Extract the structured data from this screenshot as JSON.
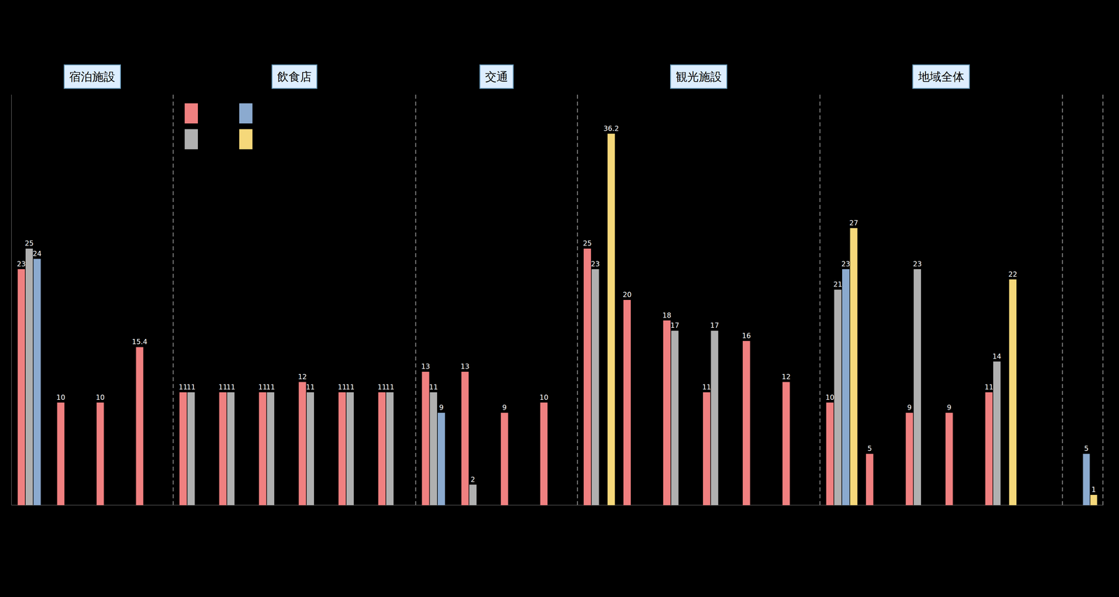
{
  "chart_data": [
    {
      "type": "bar",
      "title": "宿泊施設",
      "categories": [
        null,
        null,
        null,
        null
      ],
      "series": [
        {
          "color": "#F08080",
          "values": [
            23,
            10,
            10,
            15.4
          ]
        },
        {
          "color": "#B0B0B0",
          "values": [
            25,
            null,
            null,
            null
          ]
        },
        {
          "color": "#8BAACF",
          "values": [
            24,
            null,
            null,
            null
          ]
        },
        {
          "color": "#F5D87A",
          "values": [
            null,
            null,
            null,
            null
          ]
        }
      ],
      "ylim": [
        0,
        40
      ],
      "tick_labels": false,
      "data_labels": true
    },
    {
      "type": "bar",
      "title": "飲食店",
      "categories": [
        null,
        null,
        null,
        null,
        null,
        null
      ],
      "series": [
        {
          "color": "#F08080",
          "values": [
            11,
            11,
            11,
            12,
            11,
            11
          ]
        },
        {
          "color": "#B0B0B0",
          "values": [
            11,
            11,
            11,
            11,
            11,
            11
          ]
        },
        {
          "color": "#8BAACF",
          "values": [
            null,
            null,
            null,
            null,
            null,
            null
          ]
        },
        {
          "color": "#F5D87A",
          "values": [
            null,
            null,
            null,
            null,
            null,
            null
          ]
        }
      ],
      "ylim": [
        0,
        40
      ],
      "tick_labels": false,
      "data_labels": true,
      "legend": "upper left"
    },
    {
      "type": "bar",
      "title": "交通",
      "categories": [
        null,
        null,
        null,
        null
      ],
      "series": [
        {
          "color": "#F08080",
          "values": [
            13,
            13,
            9,
            10
          ]
        },
        {
          "color": "#B0B0B0",
          "values": [
            11,
            2,
            null,
            null
          ]
        },
        {
          "color": "#8BAACF",
          "values": [
            9,
            null,
            null,
            null
          ]
        },
        {
          "color": "#F5D87A",
          "values": [
            null,
            null,
            null,
            null
          ]
        }
      ],
      "ylim": [
        0,
        40
      ],
      "tick_labels": false,
      "data_labels": true
    },
    {
      "type": "bar",
      "title": "観光施設",
      "categories": [
        null,
        null,
        null,
        null,
        null,
        null
      ],
      "series": [
        {
          "color": "#F08080",
          "values": [
            25,
            20,
            18,
            11,
            16,
            12
          ]
        },
        {
          "color": "#B0B0B0",
          "values": [
            23,
            null,
            17,
            17,
            null,
            null
          ]
        },
        {
          "color": "#8BAACF",
          "values": [
            null,
            null,
            null,
            null,
            null,
            null
          ]
        },
        {
          "color": "#F5D87A",
          "values": [
            36.2,
            null,
            null,
            null,
            null,
            null
          ]
        }
      ],
      "ylim": [
        0,
        40
      ],
      "tick_labels": false,
      "data_labels": true
    },
    {
      "type": "bar",
      "title": "地域全体",
      "categories": [
        null,
        null,
        null,
        null,
        null,
        null
      ],
      "series": [
        {
          "color": "#F08080",
          "values": [
            10,
            5,
            9,
            9,
            11,
            null
          ]
        },
        {
          "color": "#B0B0B0",
          "values": [
            21,
            null,
            23,
            null,
            14,
            null
          ]
        },
        {
          "color": "#8BAACF",
          "values": [
            23,
            null,
            null,
            null,
            null,
            null
          ]
        },
        {
          "color": "#F5D87A",
          "values": [
            27,
            null,
            null,
            null,
            22,
            null
          ]
        }
      ],
      "ylim": [
        0,
        40
      ],
      "tick_labels": false,
      "data_labels": true
    },
    {
      "type": "bar",
      "categories": [
        null
      ],
      "series": [
        {
          "color": "#F08080",
          "values": [
            null
          ]
        },
        {
          "color": "#B0B0B0",
          "values": [
            null
          ]
        },
        {
          "color": "#8BAACF",
          "values": [
            5
          ]
        },
        {
          "color": "#F5D87A",
          "values": [
            1
          ]
        }
      ],
      "ylim": [
        0,
        40
      ],
      "tick_labels": false,
      "data_labels": true
    }
  ]
}
